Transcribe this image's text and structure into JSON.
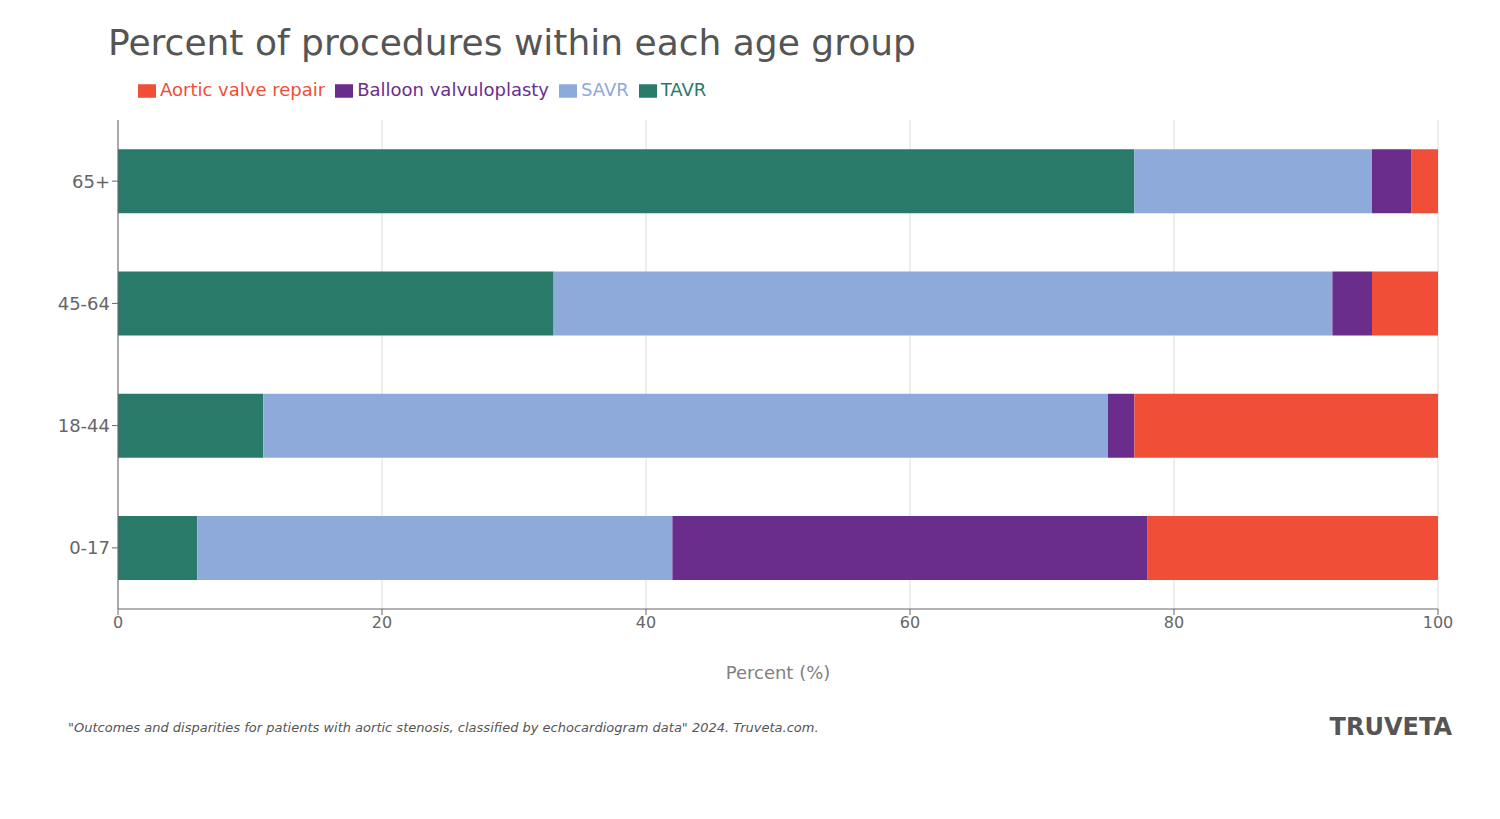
{
  "chart_data": {
    "type": "bar",
    "orientation": "horizontal",
    "stacked": true,
    "title": "Percent of procedures within each age group",
    "xlabel": "Percent (%)",
    "categories": [
      "0-17",
      "18-44",
      "45-64",
      "65+"
    ],
    "series": [
      {
        "name": "TAVR",
        "color": "#2a7a6a",
        "values": [
          6,
          11,
          33,
          77
        ]
      },
      {
        "name": "SAVR",
        "color": "#8eaadb",
        "values": [
          36,
          64,
          59,
          18
        ]
      },
      {
        "name": "Balloon valvuloplasty",
        "color": "#6b2d8b",
        "values": [
          36,
          2,
          3,
          3
        ]
      },
      {
        "name": "Aortic valve repair",
        "color": "#f04e37",
        "values": [
          22,
          23,
          5,
          2
        ]
      }
    ],
    "xlim": [
      0,
      100
    ],
    "xticks": [
      0,
      20,
      40,
      60,
      80,
      100
    ],
    "grid": true,
    "legend": "top",
    "annotations": [
      "\"Outcomes and disparities for patients with aortic stenosis, classified by echocardiogram data\" 2024. Truveta.com.",
      "TRUVETA"
    ]
  }
}
